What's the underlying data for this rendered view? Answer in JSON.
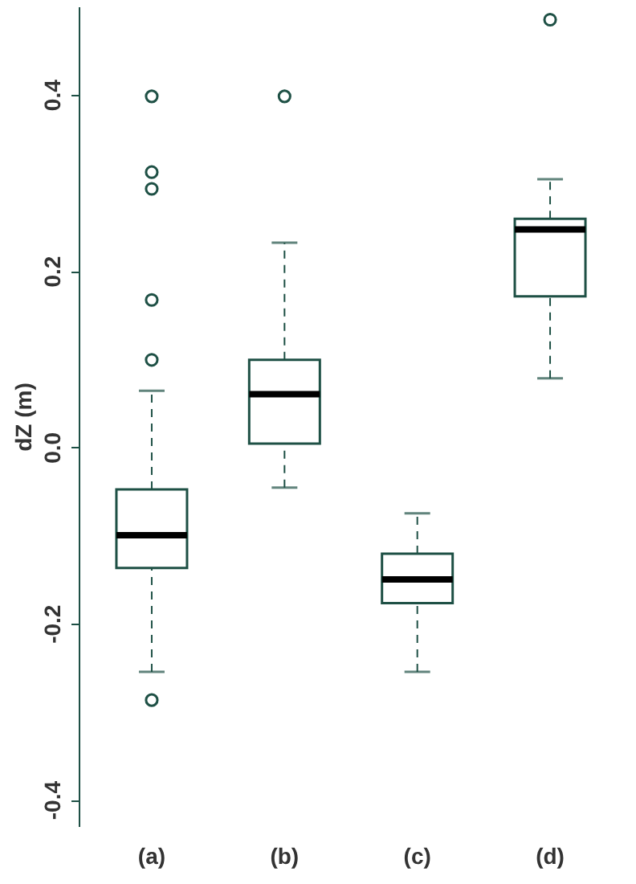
{
  "chart_data": {
    "type": "box",
    "ylabel": "dZ (m)",
    "categories": [
      "(a)",
      "(b)",
      "(c)",
      "(d)"
    ],
    "color": "#1e5045",
    "boxes": [
      {
        "low": -0.255,
        "q1": -0.137,
        "median": -0.1,
        "q3": -0.048,
        "high": 0.064,
        "outliers": [
          0.398,
          0.312,
          0.293,
          0.167,
          0.099,
          -0.287
        ]
      },
      {
        "low": -0.046,
        "q1": 0.004,
        "median": 0.06,
        "q3": 0.099,
        "high": 0.232,
        "outliers": [
          0.398
        ]
      },
      {
        "low": -0.255,
        "q1": -0.177,
        "median": -0.15,
        "q3": -0.121,
        "high": -0.075
      },
      {
        "low": 0.078,
        "q1": 0.171,
        "median": 0.247,
        "q3": 0.259,
        "high": 0.304,
        "outliers": [
          0.485
        ]
      }
    ],
    "ylim": [
      -0.43,
      0.5
    ],
    "yticks": [
      {
        "value": -0.4,
        "label": "-0.4"
      },
      {
        "value": -0.2,
        "label": "-0.2"
      },
      {
        "value": 0.0,
        "label": "0.0"
      },
      {
        "value": 0.2,
        "label": "0.2"
      },
      {
        "value": 0.4,
        "label": "0.4"
      }
    ],
    "grid": false
  }
}
